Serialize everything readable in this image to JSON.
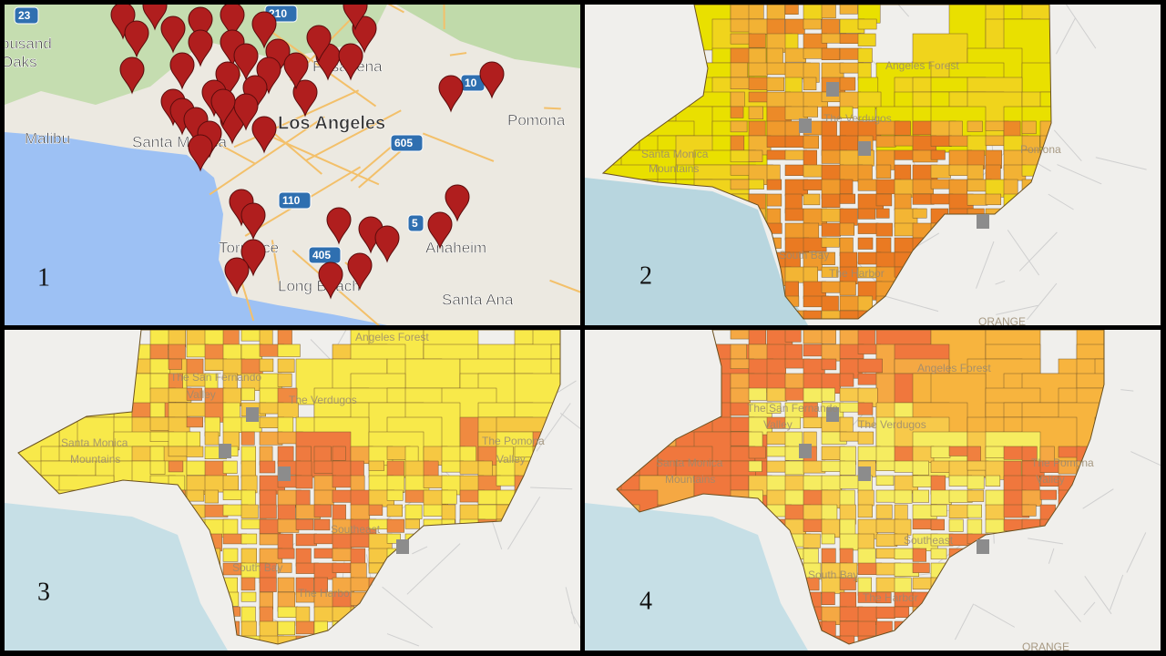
{
  "panels": [
    {
      "number": "1",
      "labels": [
        "23",
        "210",
        "ousand",
        "Oaks",
        "Malibu",
        "Santa Monica",
        "Pasadena",
        "Los Angeles",
        "10",
        "Pomona",
        "605",
        "110",
        "405",
        "5",
        "Torrance",
        "Anaheim",
        "Long Beach",
        "Santa Ana"
      ]
    },
    {
      "number": "2",
      "labels": [
        "Angeles Forest",
        "Santa Monica",
        "Mountains",
        "The Verdugos",
        "Pomona",
        "South Bay",
        "The Harbor",
        "ORANGE"
      ]
    },
    {
      "number": "3",
      "labels": [
        "Angeles Forest",
        "The San Fernando",
        "Valley",
        "The Verdugos",
        "Santa Monica",
        "Mountains",
        "The Pomona",
        "Valley",
        "Southeast",
        "South Bay",
        "The Harbor"
      ]
    },
    {
      "number": "4",
      "labels": [
        "Angeles Forest",
        "The San Fernando",
        "Valley",
        "The Verdugos",
        "Santa Monica",
        "Mountains",
        "The Pomona",
        "Valley",
        "Southeast",
        "South Bay",
        "The Harbor",
        "ORANGE"
      ]
    }
  ]
}
